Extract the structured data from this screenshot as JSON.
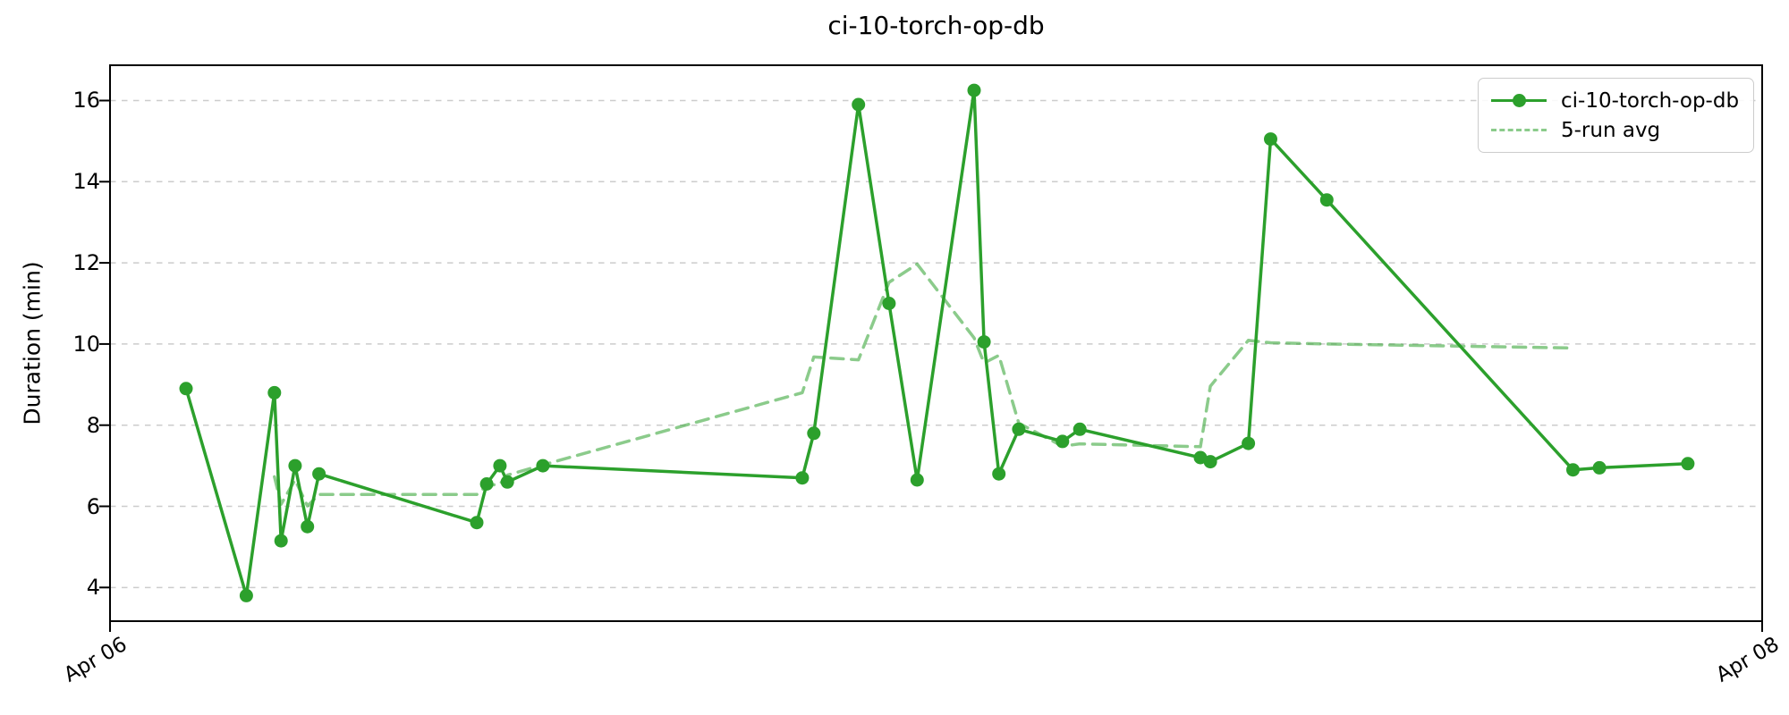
{
  "chart_data": {
    "type": "line",
    "title": "ci-10-torch-op-db",
    "xlabel": "",
    "ylabel": "Duration (min)",
    "ylim": [
      3.17,
      16.87
    ],
    "y_ticks": [
      4,
      6,
      8,
      10,
      12,
      14,
      16
    ],
    "xlim_days": [
      0,
      2
    ],
    "x_tick_days": [
      0,
      2
    ],
    "x_tick_labels": [
      "Apr 06",
      "Apr 08"
    ],
    "x_unit": "days after Apr 06",
    "grid": "horizontal dashed",
    "grid_color": "#cccccc",
    "axis_color": "#000000",
    "legend_position": "upper right",
    "series": [
      {
        "name": "ci-10-torch-op-db",
        "color": "#2ca02c",
        "line_style": "solid",
        "marker": "circle",
        "x_days": [
          0.092,
          0.165,
          0.199,
          0.207,
          0.224,
          0.239,
          0.253,
          0.444,
          0.456,
          0.472,
          0.481,
          0.524,
          0.838,
          0.852,
          0.906,
          0.943,
          0.977,
          1.046,
          1.058,
          1.076,
          1.1,
          1.153,
          1.174,
          1.32,
          1.332,
          1.378,
          1.405,
          1.473,
          1.771,
          1.803,
          1.91
        ],
        "y": [
          8.9,
          3.8,
          8.8,
          5.15,
          7.0,
          5.5,
          6.8,
          5.6,
          6.55,
          7.0,
          6.6,
          7.0,
          6.7,
          7.8,
          15.9,
          11.0,
          6.65,
          16.25,
          10.05,
          6.8,
          7.9,
          7.6,
          7.9,
          7.2,
          7.1,
          7.55,
          15.05,
          13.55,
          6.9,
          6.95,
          7.05
        ]
      },
      {
        "name": "5-run avg",
        "color": "#2ca02c",
        "opacity": 0.55,
        "line_style": "dashed",
        "marker": "none",
        "x_days": [
          0.199,
          0.207,
          0.224,
          0.239,
          0.253,
          0.444,
          0.456,
          0.472,
          0.481,
          0.524,
          0.838,
          0.852,
          0.906,
          0.943,
          0.977,
          1.046,
          1.058,
          1.076,
          1.1,
          1.153,
          1.174,
          1.32,
          1.332,
          1.378,
          1.405,
          1.473,
          1.771
        ],
        "y": [
          6.73,
          6.05,
          6.65,
          6.01,
          6.29,
          6.29,
          6.51,
          6.55,
          6.77,
          7.02,
          8.8,
          9.68,
          9.61,
          11.52,
          11.97,
          10.15,
          9.53,
          9.72,
          8.05,
          7.48,
          7.54,
          7.47,
          8.96,
          10.09,
          10.03,
          10.0,
          9.9
        ]
      }
    ]
  }
}
